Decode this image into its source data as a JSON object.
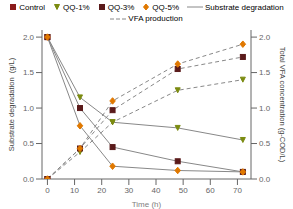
{
  "chart_data": {
    "type": "line",
    "xlabel": "Time (h)",
    "ylabel": "Substrate degradation  (g/L)",
    "y2label": "Total VFA concentration (g-COD/L)",
    "xlim": [
      -2,
      75
    ],
    "xticks": [
      0,
      10,
      20,
      30,
      40,
      50,
      60,
      70
    ],
    "ylim": [
      0,
      2.1
    ],
    "yticks": [
      {
        "value": 0.0,
        "label": "0.0"
      },
      0.5,
      {
        "value": 1.0,
        "label": "1.0"
      },
      1.5,
      {
        "value": 2.0,
        "label": "2.0"
      }
    ],
    "y2lim": [
      0,
      2.1
    ],
    "y2ticks": [
      {
        "value": 0.0,
        "label": "0.0"
      },
      0.5,
      {
        "value": 1.0,
        "label": "1.0"
      },
      1.5,
      {
        "value": 2.0,
        "label": "2.0"
      }
    ],
    "legend": "top",
    "groups": [
      {
        "name": "Control",
        "color": "#8B1A1A",
        "marker": "square"
      },
      {
        "name": "QQ-1%",
        "color": "#7B8B10",
        "marker": "triangle-down"
      },
      {
        "name": "QQ-3%",
        "color": "#5A1A1A",
        "marker": "square"
      },
      {
        "name": "QQ-5%",
        "color": "#E07800",
        "marker": "diamond"
      }
    ],
    "series": [
      {
        "name": "Substrate degradation",
        "color": "#888888",
        "line_style": "solid",
        "axis": "y",
        "data": [
          {
            "group": "Control",
            "x": [
              0
            ],
            "values": [
              2.0
            ]
          },
          {
            "group": "QQ-1%",
            "x": [
              0,
              12,
              24,
              48,
              72
            ],
            "values": [
              2.0,
              1.15,
              0.8,
              0.72,
              0.55
            ]
          },
          {
            "group": "QQ-3%",
            "x": [
              0,
              12,
              24,
              48,
              72
            ],
            "values": [
              2.0,
              1.0,
              0.45,
              0.25,
              0.1
            ]
          },
          {
            "group": "QQ-5%",
            "x": [
              0,
              12,
              24,
              48,
              72
            ],
            "values": [
              2.0,
              0.75,
              0.18,
              0.12,
              0.1
            ]
          }
        ]
      },
      {
        "name": "VFA production",
        "color": "#888888",
        "line_style": "dashed",
        "axis": "y2",
        "data": [
          {
            "group": "Control",
            "x": [
              0
            ],
            "values": [
              0.0
            ]
          },
          {
            "group": "QQ-1%",
            "x": [
              0,
              12,
              24,
              48,
              72
            ],
            "values": [
              0.0,
              0.38,
              0.8,
              1.25,
              1.4
            ]
          },
          {
            "group": "QQ-3%",
            "x": [
              0,
              12,
              24,
              48,
              72
            ],
            "values": [
              0.0,
              0.43,
              0.97,
              1.55,
              1.72
            ]
          },
          {
            "group": "QQ-5%",
            "x": [
              0,
              12,
              24,
              48,
              72
            ],
            "values": [
              0.0,
              0.43,
              1.1,
              1.62,
              1.9
            ]
          }
        ]
      }
    ]
  }
}
